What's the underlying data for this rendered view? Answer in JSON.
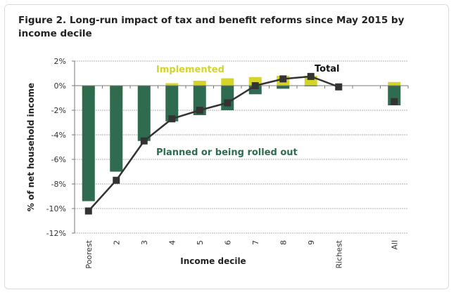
{
  "chart_data": {
    "type": "bar",
    "title": "Figure 2. Long-run impact of tax and benefit reforms since May 2015 by income decile",
    "xlabel": "Income decile",
    "ylabel": "% of net household income",
    "ylim": [
      -12,
      2
    ],
    "yticks": [
      2,
      0,
      -2,
      -4,
      -6,
      -8,
      -10,
      -12
    ],
    "ytick_labels": [
      "2%",
      "0%",
      "-2%",
      "-4%",
      "-6%",
      "-8%",
      "-10%",
      "-12%"
    ],
    "categories": [
      "Poorest",
      "2",
      "3",
      "4",
      "5",
      "6",
      "7",
      "8",
      "9",
      "Richest",
      "",
      "All"
    ],
    "grid": true,
    "series": [
      {
        "name": "Implemented",
        "type": "bar",
        "color": "#d4d42a",
        "values": [
          -0.8,
          -0.7,
          0,
          0.2,
          0.4,
          0.6,
          0.7,
          0.8,
          0.8,
          0,
          null,
          0.3
        ]
      },
      {
        "name": "Planned or being rolled out",
        "type": "bar",
        "color": "#2e6b4f",
        "values": [
          -9.4,
          -7.0,
          -4.5,
          -2.9,
          -2.4,
          -2.0,
          -0.7,
          -0.25,
          -0.05,
          0,
          null,
          -1.6
        ]
      },
      {
        "name": "Total",
        "type": "line",
        "color": "#333333",
        "values": [
          -10.2,
          -7.7,
          -4.5,
          -2.7,
          -2.0,
          -1.4,
          0.0,
          0.55,
          0.75,
          -0.1,
          null,
          -1.3
        ]
      }
    ]
  }
}
